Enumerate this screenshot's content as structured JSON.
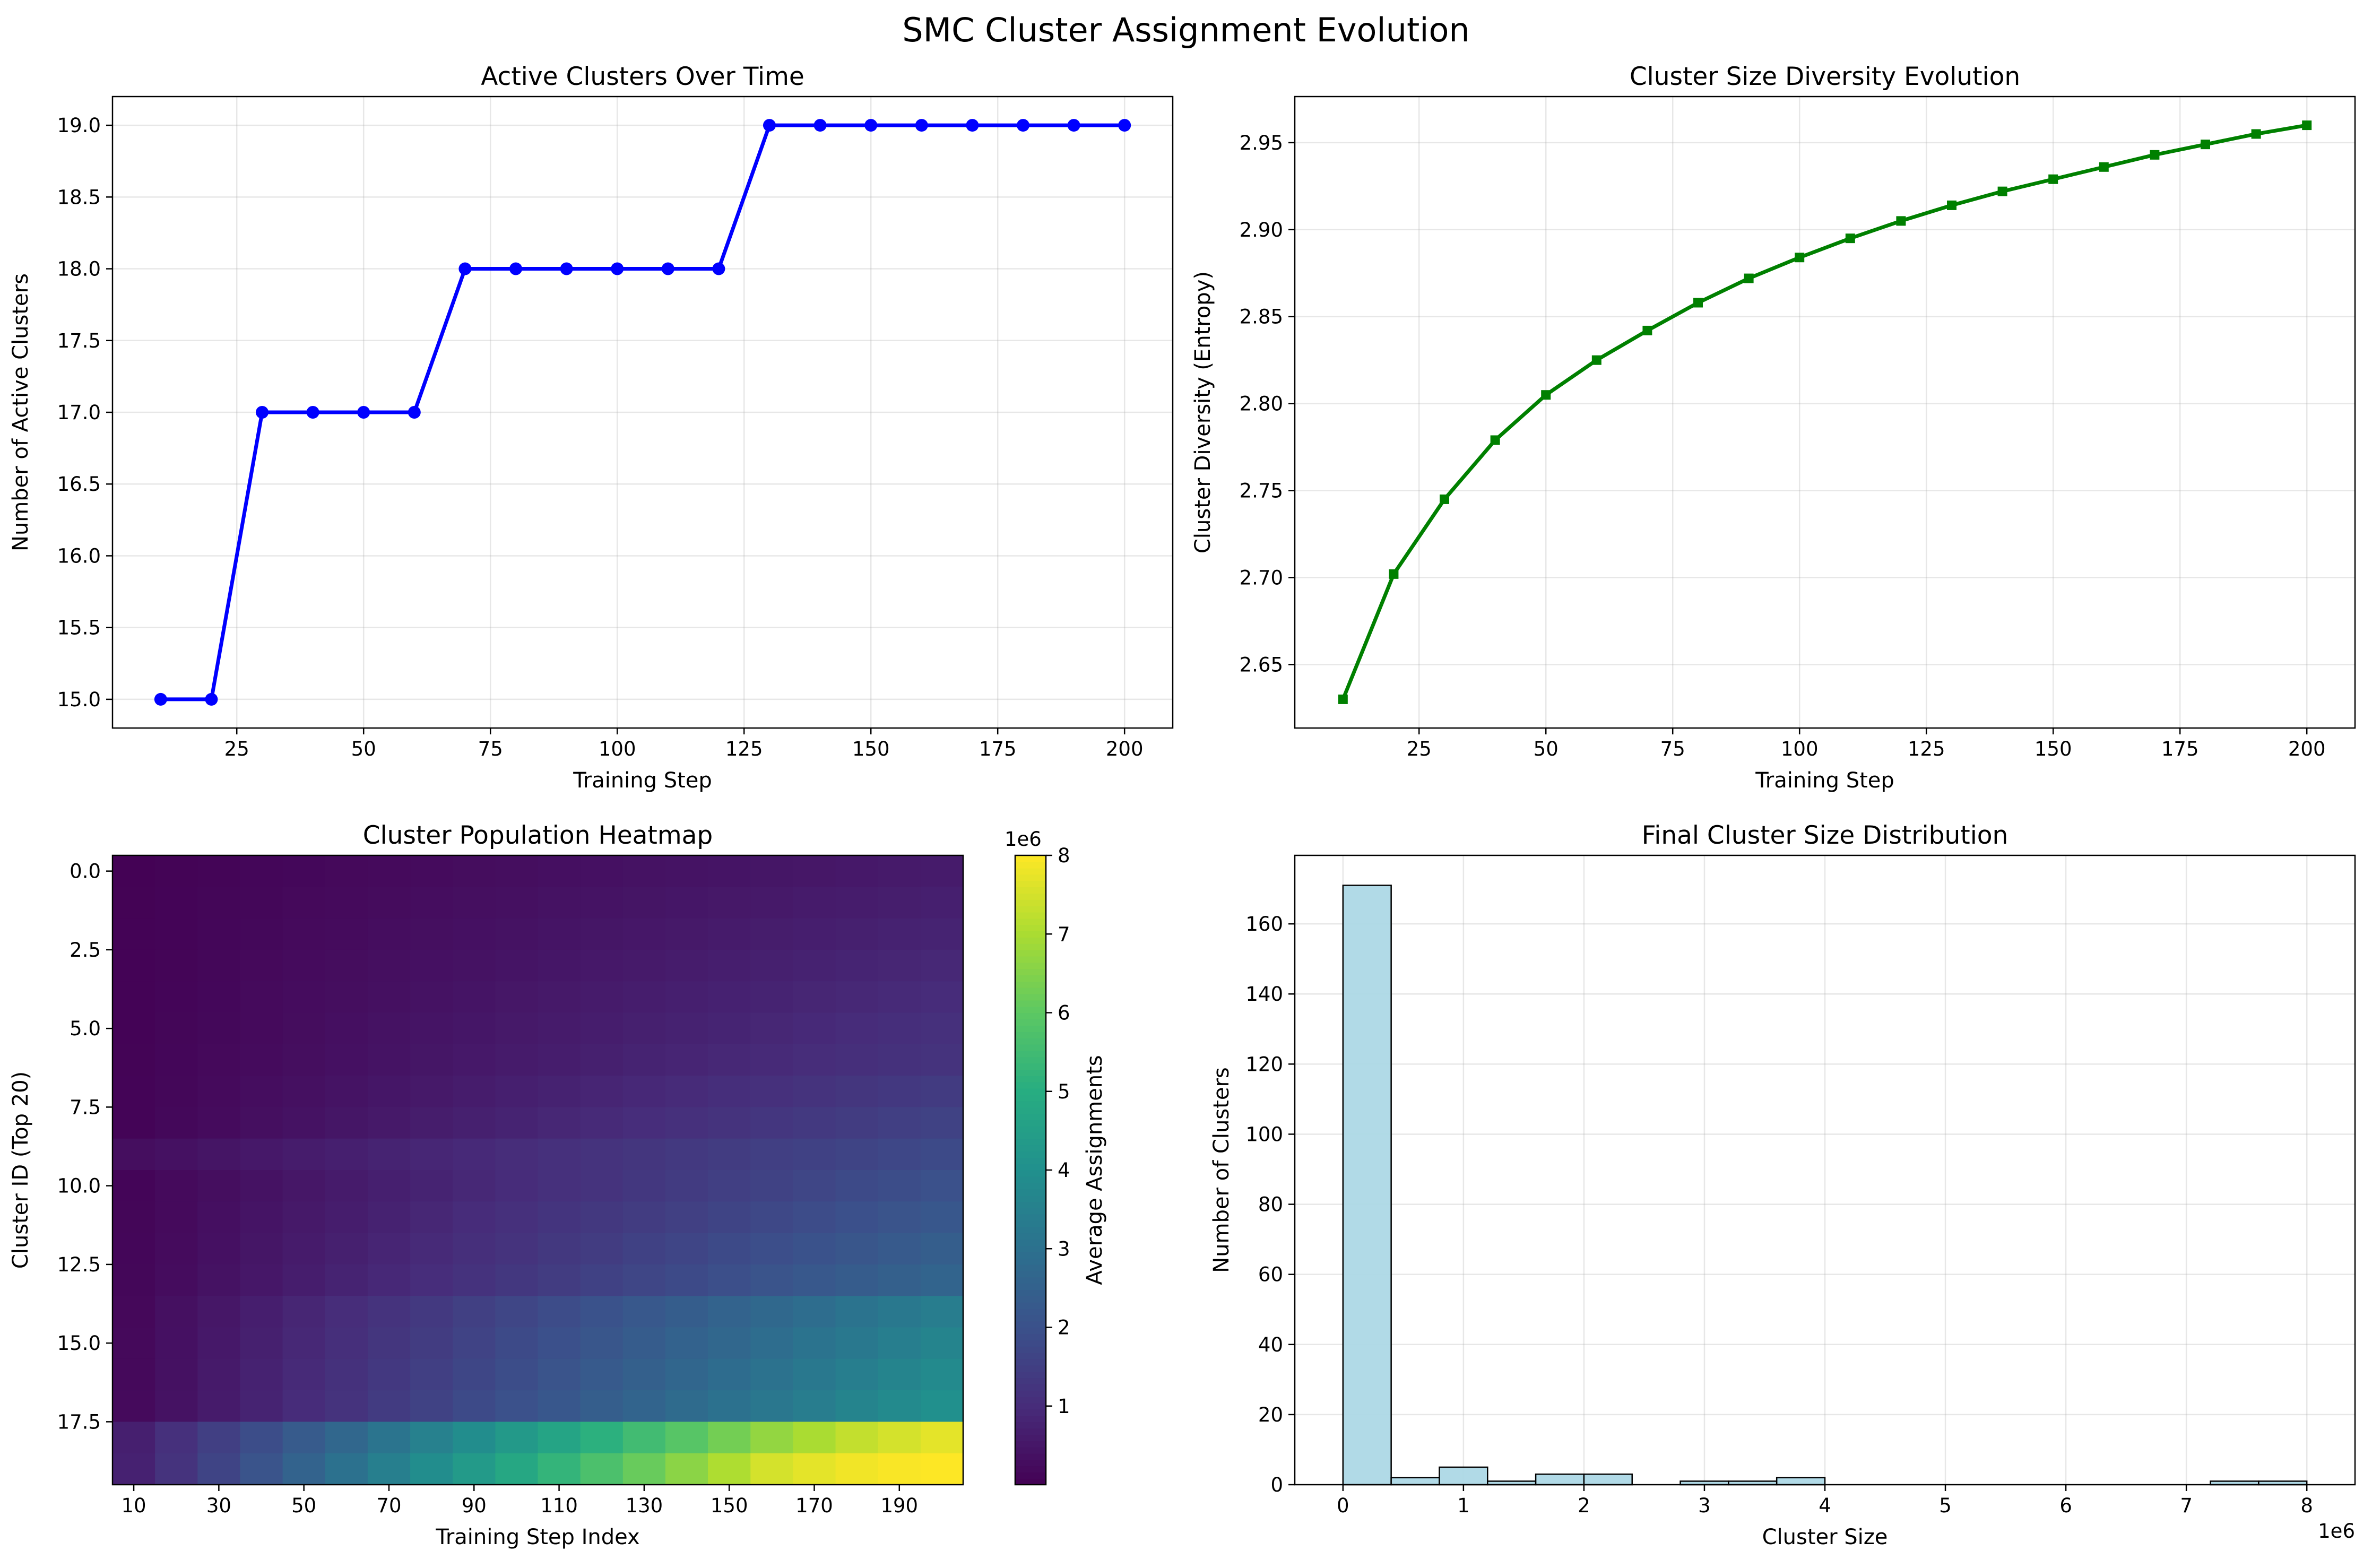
{
  "suptitle": "SMC Cluster Assignment Evolution",
  "chart_data": [
    {
      "type": "line",
      "title": "Active Clusters Over Time",
      "xlabel": "Training Step",
      "ylabel": "Number of Active Clusters",
      "x": [
        10,
        20,
        30,
        40,
        50,
        60,
        70,
        80,
        90,
        100,
        110,
        120,
        130,
        140,
        150,
        160,
        170,
        180,
        190,
        200
      ],
      "series": [
        {
          "values": [
            15,
            15,
            17,
            17,
            17,
            17,
            18,
            18,
            18,
            18,
            18,
            18,
            19,
            19,
            19,
            19,
            19,
            19,
            19,
            19
          ],
          "color": "#0000ff",
          "marker": "circle"
        }
      ],
      "xlim": [
        0.5,
        209.5
      ],
      "ylim": [
        14.8,
        19.2
      ],
      "xticks": [
        25,
        50,
        75,
        100,
        125,
        150,
        175,
        200
      ],
      "xtick_labels": [
        "25",
        "50",
        "75",
        "100",
        "125",
        "150",
        "175",
        "200"
      ],
      "yticks": [
        15.0,
        15.5,
        16.0,
        16.5,
        17.0,
        17.5,
        18.0,
        18.5,
        19.0
      ],
      "ytick_labels": [
        "15.0",
        "15.5",
        "16.0",
        "16.5",
        "17.0",
        "17.5",
        "18.0",
        "18.5",
        "19.0"
      ],
      "grid": true
    },
    {
      "type": "line",
      "title": "Cluster Size Diversity Evolution",
      "xlabel": "Training Step",
      "ylabel": "Cluster Diversity (Entropy)",
      "x": [
        10,
        20,
        30,
        40,
        50,
        60,
        70,
        80,
        90,
        100,
        110,
        120,
        130,
        140,
        150,
        160,
        170,
        180,
        190,
        200
      ],
      "series": [
        {
          "values": [
            2.63,
            2.702,
            2.745,
            2.779,
            2.805,
            2.825,
            2.842,
            2.858,
            2.872,
            2.884,
            2.895,
            2.905,
            2.914,
            2.922,
            2.929,
            2.936,
            2.943,
            2.949,
            2.955,
            2.96
          ],
          "color": "#008000",
          "marker": "square"
        }
      ],
      "xlim": [
        0.5,
        209.5
      ],
      "ylim": [
        2.6135,
        2.9765
      ],
      "xticks": [
        25,
        50,
        75,
        100,
        125,
        150,
        175,
        200
      ],
      "xtick_labels": [
        "25",
        "50",
        "75",
        "100",
        "125",
        "150",
        "175",
        "200"
      ],
      "yticks": [
        2.65,
        2.7,
        2.75,
        2.8,
        2.85,
        2.9,
        2.95
      ],
      "ytick_labels": [
        "2.65",
        "2.70",
        "2.75",
        "2.80",
        "2.85",
        "2.90",
        "2.95"
      ],
      "grid": true
    },
    {
      "type": "heatmap",
      "title": "Cluster Population Heatmap",
      "xlabel": "Training Step Index",
      "ylabel": "Cluster ID (Top 20)",
      "colormap": "viridis",
      "rows": 20,
      "cols": 20,
      "value_scale": 1000000,
      "cell_values": [
        [
          0.03,
          0.06,
          0.09,
          0.12,
          0.15,
          0.18,
          0.21,
          0.24,
          0.27,
          0.3,
          0.33,
          0.36,
          0.39,
          0.42,
          0.45,
          0.48,
          0.51,
          0.54,
          0.57,
          0.6
        ],
        [
          0.035,
          0.07,
          0.105,
          0.14,
          0.175,
          0.21,
          0.245,
          0.28,
          0.315,
          0.35,
          0.385,
          0.42,
          0.455,
          0.49,
          0.525,
          0.56,
          0.595,
          0.63,
          0.665,
          0.7
        ],
        [
          0.04,
          0.08,
          0.12,
          0.16,
          0.2,
          0.24,
          0.28,
          0.32,
          0.36,
          0.4,
          0.44,
          0.48,
          0.52,
          0.56,
          0.6,
          0.64,
          0.68,
          0.72,
          0.76,
          0.8
        ],
        [
          0.045,
          0.09,
          0.135,
          0.18,
          0.225,
          0.27,
          0.315,
          0.36,
          0.405,
          0.45,
          0.495,
          0.54,
          0.585,
          0.63,
          0.675,
          0.72,
          0.765,
          0.81,
          0.855,
          0.9
        ],
        [
          0.05,
          0.1,
          0.15,
          0.2,
          0.25,
          0.3,
          0.35,
          0.4,
          0.45,
          0.5,
          0.55,
          0.6,
          0.65,
          0.7,
          0.75,
          0.8,
          0.85,
          0.9,
          0.95,
          1.0
        ],
        [
          0.055,
          0.11,
          0.165,
          0.22,
          0.275,
          0.33,
          0.385,
          0.44,
          0.495,
          0.55,
          0.605,
          0.66,
          0.715,
          0.77,
          0.825,
          0.88,
          0.935,
          0.99,
          1.045,
          1.1
        ],
        [
          0.06,
          0.12,
          0.18,
          0.24,
          0.3,
          0.36,
          0.42,
          0.48,
          0.54,
          0.6,
          0.66,
          0.72,
          0.78,
          0.84,
          0.9,
          0.96,
          1.02,
          1.08,
          1.14,
          1.2
        ],
        [
          0.07,
          0.14,
          0.21,
          0.28,
          0.35,
          0.42,
          0.49,
          0.56,
          0.63,
          0.7,
          0.77,
          0.84,
          0.91,
          0.98,
          1.05,
          1.12,
          1.19,
          1.26,
          1.33,
          1.4
        ],
        [
          0.08,
          0.16,
          0.24,
          0.32,
          0.4,
          0.48,
          0.56,
          0.64,
          0.72,
          0.8,
          0.88,
          0.96,
          1.04,
          1.12,
          1.2,
          1.28,
          1.36,
          1.44,
          1.52,
          1.6
        ],
        [
          0.3,
          0.38,
          0.46,
          0.54,
          0.62,
          0.7,
          0.78,
          0.86,
          0.94,
          1.02,
          1.1,
          1.18,
          1.26,
          1.34,
          1.42,
          1.5,
          1.58,
          1.66,
          1.74,
          1.82
        ],
        [
          0.1,
          0.2,
          0.3,
          0.4,
          0.5,
          0.6,
          0.7,
          0.8,
          0.9,
          1.0,
          1.1,
          1.2,
          1.3,
          1.4,
          1.5,
          1.6,
          1.7,
          1.8,
          1.9,
          2.0
        ],
        [
          0.11,
          0.22,
          0.33,
          0.44,
          0.55,
          0.66,
          0.77,
          0.88,
          0.99,
          1.1,
          1.21,
          1.32,
          1.43,
          1.54,
          1.65,
          1.76,
          1.87,
          1.98,
          2.09,
          2.2
        ],
        [
          0.12,
          0.24,
          0.36,
          0.48,
          0.6,
          0.72,
          0.84,
          0.96,
          1.08,
          1.2,
          1.32,
          1.44,
          1.56,
          1.68,
          1.8,
          1.92,
          2.04,
          2.16,
          2.28,
          2.4
        ],
        [
          0.13,
          0.26,
          0.39,
          0.52,
          0.65,
          0.78,
          0.91,
          1.04,
          1.17,
          1.3,
          1.43,
          1.56,
          1.69,
          1.82,
          1.95,
          2.08,
          2.21,
          2.34,
          2.47,
          2.6
        ],
        [
          0.17,
          0.34,
          0.51,
          0.68,
          0.85,
          1.02,
          1.19,
          1.36,
          1.53,
          1.7,
          1.87,
          2.04,
          2.21,
          2.38,
          2.55,
          2.72,
          2.89,
          3.06,
          3.23,
          3.4
        ],
        [
          0.18,
          0.36,
          0.54,
          0.72,
          0.9,
          1.08,
          1.26,
          1.44,
          1.62,
          1.8,
          1.98,
          2.16,
          2.34,
          2.52,
          2.7,
          2.88,
          3.06,
          3.24,
          3.42,
          3.6
        ],
        [
          0.19,
          0.38,
          0.57,
          0.76,
          0.95,
          1.14,
          1.33,
          1.52,
          1.71,
          1.9,
          2.09,
          2.28,
          2.47,
          2.66,
          2.85,
          3.04,
          3.23,
          3.42,
          3.61,
          3.8
        ],
        [
          0.2,
          0.4,
          0.6,
          0.8,
          1.0,
          1.2,
          1.4,
          1.6,
          1.8,
          2.0,
          2.2,
          2.4,
          2.6,
          2.8,
          3.0,
          3.2,
          3.4,
          3.6,
          3.8,
          4.0
        ],
        [
          0.7,
          1.1,
          1.5,
          1.9,
          2.3,
          2.7,
          3.1,
          3.5,
          3.9,
          4.3,
          4.7,
          5.1,
          5.5,
          5.9,
          6.3,
          6.7,
          7.0,
          7.3,
          7.5,
          7.7
        ],
        [
          0.75,
          1.2,
          1.65,
          2.1,
          2.55,
          3.0,
          3.45,
          3.9,
          4.35,
          4.8,
          5.25,
          5.7,
          6.15,
          6.6,
          7.05,
          7.5,
          7.7,
          7.85,
          7.95,
          8.0
        ]
      ],
      "xtick_labels": [
        "10",
        "30",
        "50",
        "70",
        "90",
        "110",
        "130",
        "150",
        "170",
        "190"
      ],
      "yticks": [
        0.0,
        2.5,
        5.0,
        7.5,
        10.0,
        12.5,
        15.0,
        17.5
      ],
      "ytick_labels": [
        "0.0",
        "2.5",
        "5.0",
        "7.5",
        "10.0",
        "12.5",
        "15.0",
        "17.5"
      ],
      "colorbar": {
        "label": "Average Assignments",
        "range": [
          0,
          8
        ],
        "ticks": [
          1,
          2,
          3,
          4,
          5,
          6,
          7,
          8
        ],
        "tick_labels": [
          "1",
          "2",
          "3",
          "4",
          "5",
          "6",
          "7",
          "8"
        ],
        "offset_text": "1e6"
      }
    },
    {
      "type": "bar",
      "subtype": "histogram",
      "title": "Final Cluster Size Distribution",
      "xlabel": "Cluster Size",
      "ylabel": "Number of Clusters",
      "bin_edges": [
        0,
        0.4,
        0.8,
        1.2,
        1.6,
        2.0,
        2.4,
        2.8,
        3.2,
        3.6,
        4.0,
        4.4,
        4.8,
        5.2,
        5.6,
        6.0,
        6.4,
        6.8,
        7.2,
        7.6,
        8.0
      ],
      "values": [
        171,
        2,
        5,
        1,
        3,
        3,
        0,
        1,
        1,
        2,
        0,
        0,
        0,
        0,
        0,
        0,
        0,
        0,
        1,
        1
      ],
      "bar_color": "#add8e6",
      "edge_color": "#000000",
      "xlim": [
        -0.4,
        8.4
      ],
      "ylim": [
        0,
        179.55
      ],
      "xticks": [
        0,
        1,
        2,
        3,
        4,
        5,
        6,
        7,
        8
      ],
      "xtick_labels": [
        "0",
        "1",
        "2",
        "3",
        "4",
        "5",
        "6",
        "7",
        "8"
      ],
      "yticks": [
        0,
        20,
        40,
        60,
        80,
        100,
        120,
        140,
        160
      ],
      "ytick_labels": [
        "0",
        "20",
        "40",
        "60",
        "80",
        "100",
        "120",
        "140",
        "160"
      ],
      "x_offset_text": "1e6",
      "grid": true
    }
  ]
}
